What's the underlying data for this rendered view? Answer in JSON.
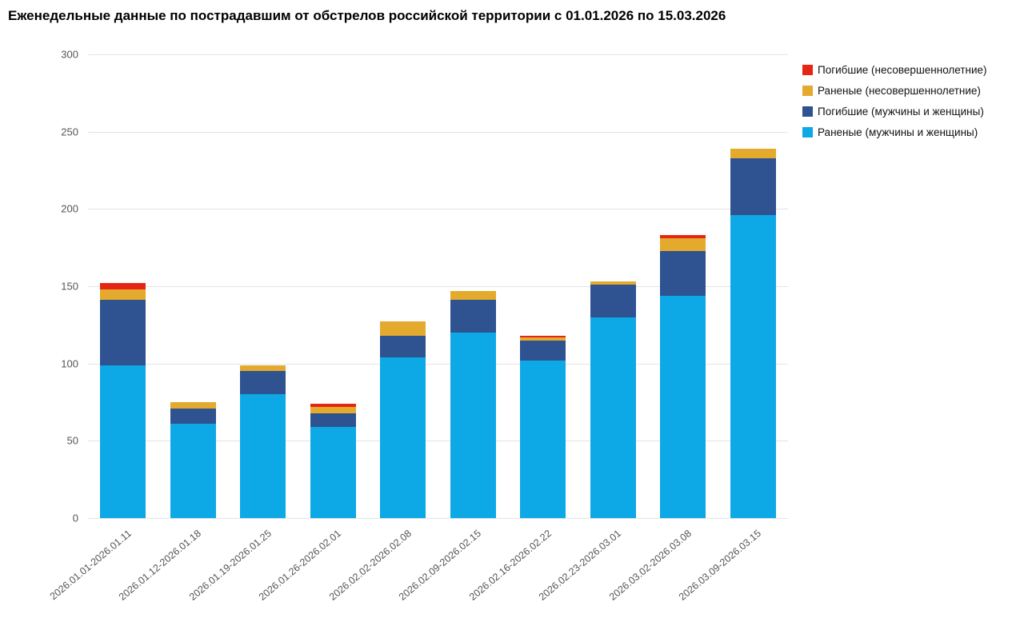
{
  "title": "Еженедельные данные по пострадавшим от обстрелов российской территории с 01.01.2026 по 15.03.2026",
  "chart_data": {
    "type": "bar",
    "stacked": true,
    "title": "Еженедельные данные по пострадавшим от обстрелов российской территории с 01.01.2026 по 15.03.2026",
    "xlabel": "",
    "ylabel": "",
    "ylim": [
      0,
      300
    ],
    "yticks": [
      0,
      50,
      100,
      150,
      200,
      250,
      300
    ],
    "grid": true,
    "legend_position": "top-right",
    "categories": [
      "2026.01.01-2026.01.11",
      "2026.01.12-2026.01.18",
      "2026.01.19-2026.01.25",
      "2026.01.26-2026.02.01",
      "2026.02.02-2026.02.08",
      "2026.02.09-2026.02.15",
      "2026.02.16-2026.02.22",
      "2026.02.23-2026.03.01",
      "2026.03.02-2026.03.08",
      "2026.03.09-2026.03.15"
    ],
    "series": [
      {
        "name": "Раненые (мужчины и женщины)",
        "color": "#0da8e6",
        "values": [
          99,
          61,
          80,
          59,
          104,
          120,
          102,
          130,
          144,
          196
        ]
      },
      {
        "name": "Погибшие (мужчины и женщины)",
        "color": "#2f5291",
        "values": [
          42,
          10,
          15,
          9,
          14,
          21,
          13,
          21,
          29,
          37
        ]
      },
      {
        "name": "Раненые (несовершеннолетние)",
        "color": "#e3aa2d",
        "values": [
          7,
          4,
          4,
          4,
          9,
          6,
          2,
          2,
          8,
          6
        ]
      },
      {
        "name": "Погибшие (несовершеннолетние)",
        "color": "#e52613",
        "values": [
          4,
          0,
          0,
          2,
          0,
          0,
          1,
          0,
          2,
          0
        ]
      }
    ],
    "legend_order_note": "legend lists series top-to-bottom in reverse stack order"
  }
}
